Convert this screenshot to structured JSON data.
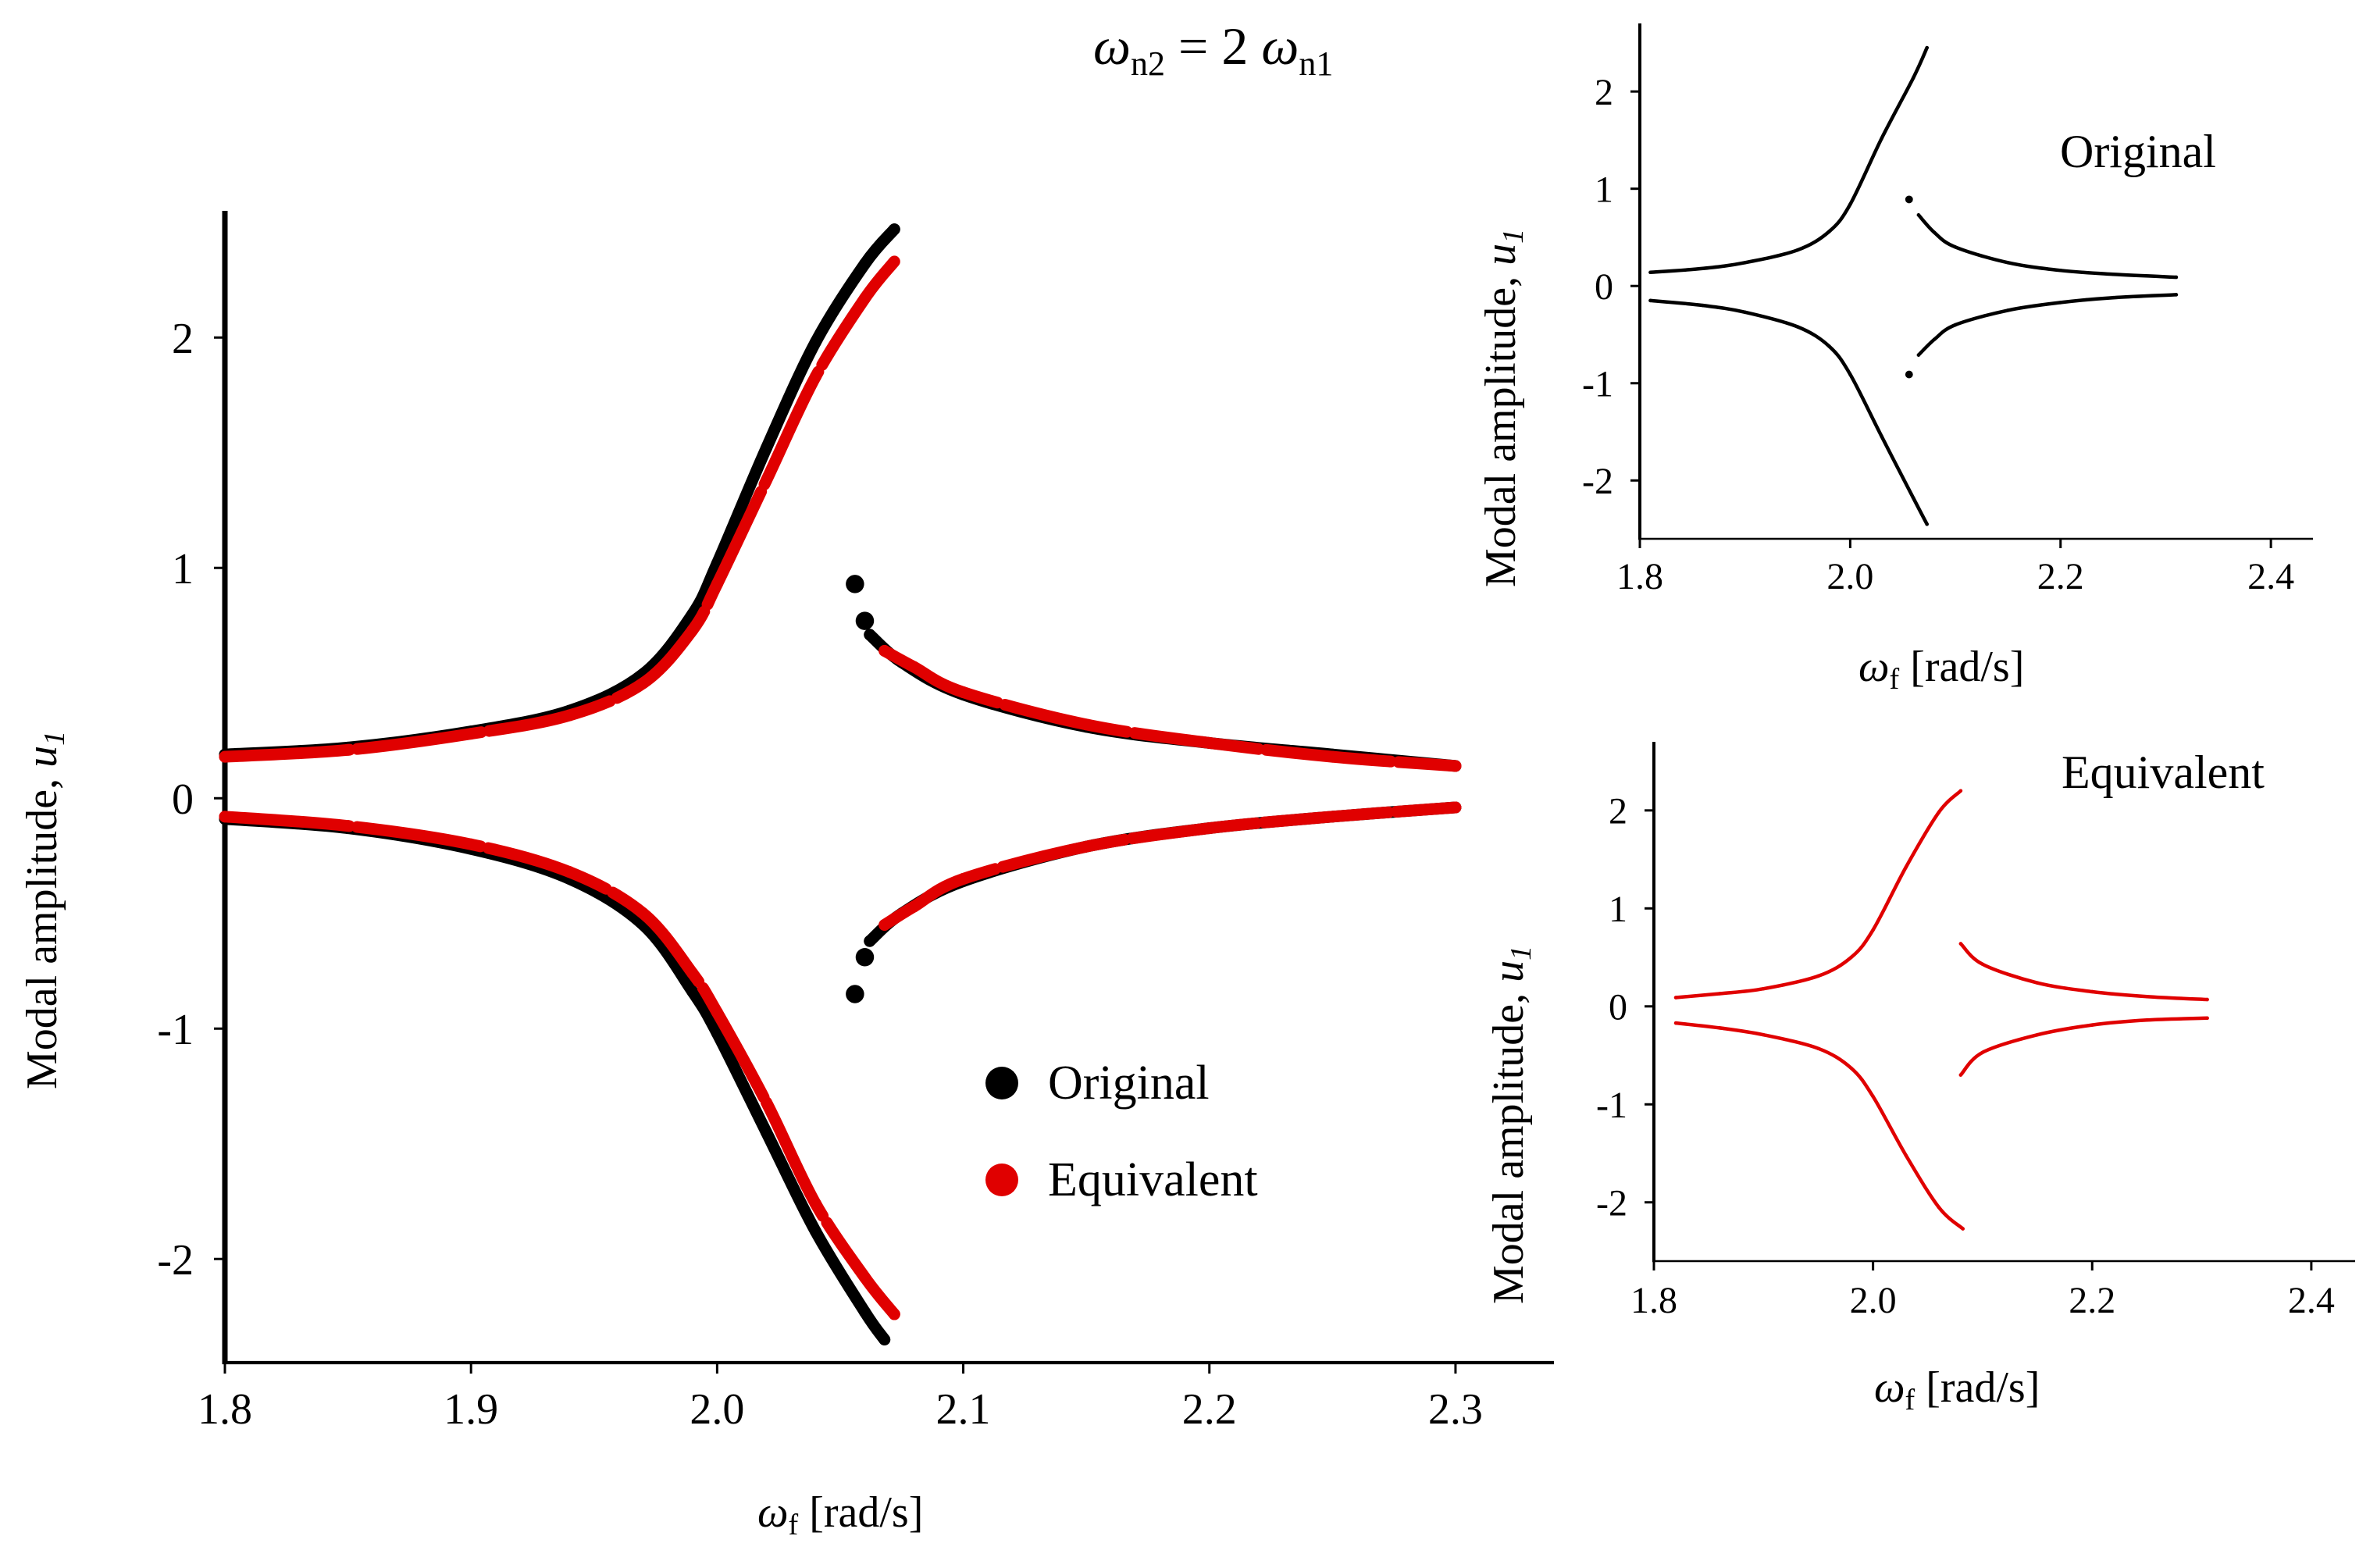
{
  "heading": {
    "omega": "ω",
    "sub_left": "n2",
    "middle": " = 2 ",
    "sub_right": "n1"
  },
  "colors": {
    "original": "#000000",
    "equivalent": "#e00000",
    "axis": "#000000"
  },
  "chart_data": [
    {
      "id": "main",
      "type": "scatter",
      "title": "",
      "xlabel": {
        "symbol": "ω",
        "sub": "f",
        "text": " [rad/s]"
      },
      "ylabel": {
        "text": "Modal amplitude, ",
        "symbol": "u",
        "sub": "1"
      },
      "xlim": [
        1.8,
        2.34
      ],
      "ylim": [
        -2.45,
        2.55
      ],
      "xticks": [
        "1.8",
        "1.9",
        "2.0",
        "2.1",
        "2.2",
        "2.3"
      ],
      "yticks": [
        "-2",
        "-1",
        "0",
        "1",
        "2"
      ],
      "legend": {
        "position": "lower-center",
        "entries": [
          "Original",
          "Equivalent"
        ]
      },
      "series": [
        {
          "name": "Original",
          "color_key": "original",
          "upper_left": [
            [
              1.8,
              0.19
            ],
            [
              1.85,
              0.22
            ],
            [
              1.9,
              0.29
            ],
            [
              1.94,
              0.38
            ],
            [
              1.97,
              0.54
            ],
            [
              1.99,
              0.8
            ],
            [
              2.0,
              1.02
            ],
            [
              2.02,
              1.52
            ],
            [
              2.04,
              1.98
            ],
            [
              2.06,
              2.32
            ],
            [
              2.072,
              2.47
            ]
          ],
          "lower_left": [
            [
              1.8,
              -0.09
            ],
            [
              1.85,
              -0.13
            ],
            [
              1.9,
              -0.22
            ],
            [
              1.94,
              -0.35
            ],
            [
              1.97,
              -0.55
            ],
            [
              1.99,
              -0.84
            ],
            [
              2.0,
              -1.02
            ],
            [
              2.02,
              -1.45
            ],
            [
              2.04,
              -1.88
            ],
            [
              2.06,
              -2.23
            ],
            [
              2.068,
              -2.35
            ]
          ],
          "upper_right": [
            [
              2.062,
              0.71
            ],
            [
              2.075,
              0.59
            ],
            [
              2.1,
              0.45
            ],
            [
              2.15,
              0.31
            ],
            [
              2.2,
              0.24
            ],
            [
              2.25,
              0.19
            ],
            [
              2.3,
              0.14
            ]
          ],
          "lower_right": [
            [
              2.062,
              -0.62
            ],
            [
              2.075,
              -0.5
            ],
            [
              2.1,
              -0.36
            ],
            [
              2.15,
              -0.21
            ],
            [
              2.2,
              -0.13
            ],
            [
              2.25,
              -0.08
            ],
            [
              2.3,
              -0.04
            ]
          ],
          "isolated": [
            [
              2.056,
              0.93
            ],
            [
              2.06,
              0.77
            ],
            [
              2.056,
              -0.85
            ],
            [
              2.06,
              -0.69
            ]
          ]
        },
        {
          "name": "Equivalent",
          "color_key": "equivalent",
          "upper_left": [
            [
              1.8,
              0.18
            ],
            [
              1.85,
              0.21
            ],
            [
              1.9,
              0.28
            ],
            [
              1.94,
              0.36
            ],
            [
              1.97,
              0.5
            ],
            [
              1.99,
              0.73
            ],
            [
              2.0,
              0.93
            ],
            [
              2.02,
              1.38
            ],
            [
              2.04,
              1.83
            ],
            [
              2.06,
              2.17
            ],
            [
              2.072,
              2.33
            ]
          ],
          "lower_left": [
            [
              1.8,
              -0.08
            ],
            [
              1.85,
              -0.12
            ],
            [
              1.9,
              -0.2
            ],
            [
              1.94,
              -0.32
            ],
            [
              1.97,
              -0.5
            ],
            [
              1.99,
              -0.76
            ],
            [
              2.0,
              -0.93
            ],
            [
              2.02,
              -1.32
            ],
            [
              2.04,
              -1.76
            ],
            [
              2.06,
              -2.08
            ],
            [
              2.072,
              -2.24
            ]
          ],
          "upper_right": [
            [
              2.068,
              0.64
            ],
            [
              2.08,
              0.57
            ],
            [
              2.1,
              0.46
            ],
            [
              2.15,
              0.32
            ],
            [
              2.2,
              0.24
            ],
            [
              2.25,
              0.18
            ],
            [
              2.3,
              0.14
            ]
          ],
          "lower_right": [
            [
              2.068,
              -0.55
            ],
            [
              2.08,
              -0.47
            ],
            [
              2.1,
              -0.35
            ],
            [
              2.15,
              -0.21
            ],
            [
              2.2,
              -0.13
            ],
            [
              2.25,
              -0.08
            ],
            [
              2.3,
              -0.04
            ]
          ],
          "isolated": []
        }
      ]
    },
    {
      "id": "inset-original",
      "type": "line",
      "title": "Original",
      "xlabel": {
        "symbol": "ω",
        "sub": "f",
        "text": " [rad/s]"
      },
      "ylabel": {
        "text": "Modal amplitude, ",
        "symbol": "u",
        "sub": "1"
      },
      "xlim": [
        1.8,
        2.44
      ],
      "ylim": [
        -2.6,
        2.7
      ],
      "xticks": [
        "1.8",
        "2.0",
        "2.2",
        "2.4"
      ],
      "yticks": [
        "-2",
        "-1",
        "0",
        "1",
        "2"
      ],
      "series": [
        {
          "name": "Original",
          "color_key": "original",
          "upper_left": [
            [
              1.81,
              0.14
            ],
            [
              1.86,
              0.18
            ],
            [
              1.9,
              0.24
            ],
            [
              1.95,
              0.37
            ],
            [
              1.98,
              0.56
            ],
            [
              2.0,
              0.84
            ],
            [
              2.03,
              1.52
            ],
            [
              2.06,
              2.14
            ],
            [
              2.073,
              2.45
            ]
          ],
          "lower_left": [
            [
              1.81,
              -0.15
            ],
            [
              1.86,
              -0.2
            ],
            [
              1.9,
              -0.27
            ],
            [
              1.95,
              -0.42
            ],
            [
              1.98,
              -0.62
            ],
            [
              2.0,
              -0.91
            ],
            [
              2.03,
              -1.55
            ],
            [
              2.06,
              -2.18
            ],
            [
              2.073,
              -2.45
            ]
          ],
          "upper_right": [
            [
              2.065,
              0.73
            ],
            [
              2.08,
              0.55
            ],
            [
              2.1,
              0.4
            ],
            [
              2.15,
              0.24
            ],
            [
              2.2,
              0.16
            ],
            [
              2.25,
              0.12
            ],
            [
              2.31,
              0.09
            ]
          ],
          "lower_right": [
            [
              2.065,
              -0.71
            ],
            [
              2.08,
              -0.55
            ],
            [
              2.1,
              -0.4
            ],
            [
              2.15,
              -0.25
            ],
            [
              2.2,
              -0.17
            ],
            [
              2.25,
              -0.12
            ],
            [
              2.31,
              -0.09
            ]
          ],
          "isolated": [
            [
              2.056,
              0.89
            ],
            [
              2.056,
              -0.91
            ]
          ]
        }
      ]
    },
    {
      "id": "inset-equivalent",
      "type": "line",
      "title": "Equivalent",
      "xlabel": {
        "symbol": "ω",
        "sub": "f",
        "text": " [rad/s]"
      },
      "ylabel": {
        "text": "Modal amplitude, ",
        "symbol": "u",
        "sub": "1"
      },
      "xlim": [
        1.8,
        2.44
      ],
      "ylim": [
        -2.6,
        2.7
      ],
      "xticks": [
        "1.8",
        "2.0",
        "2.2",
        "2.4"
      ],
      "yticks": [
        "-2",
        "-1",
        "0",
        "1",
        "2"
      ],
      "series": [
        {
          "name": "Equivalent",
          "color_key": "equivalent",
          "upper_left": [
            [
              1.82,
              0.09
            ],
            [
              1.86,
              0.13
            ],
            [
              1.9,
              0.18
            ],
            [
              1.95,
              0.31
            ],
            [
              1.98,
              0.5
            ],
            [
              2.0,
              0.78
            ],
            [
              2.03,
              1.42
            ],
            [
              2.06,
              1.98
            ],
            [
              2.08,
              2.2
            ]
          ],
          "lower_left": [
            [
              1.82,
              -0.17
            ],
            [
              1.86,
              -0.22
            ],
            [
              1.9,
              -0.29
            ],
            [
              1.95,
              -0.43
            ],
            [
              1.98,
              -0.63
            ],
            [
              2.0,
              -0.92
            ],
            [
              2.03,
              -1.52
            ],
            [
              2.06,
              -2.05
            ],
            [
              2.082,
              -2.27
            ]
          ],
          "upper_right": [
            [
              2.08,
              0.64
            ],
            [
              2.1,
              0.43
            ],
            [
              2.15,
              0.24
            ],
            [
              2.2,
              0.15
            ],
            [
              2.25,
              0.1
            ],
            [
              2.305,
              0.07
            ]
          ],
          "lower_right": [
            [
              2.08,
              -0.7
            ],
            [
              2.1,
              -0.47
            ],
            [
              2.15,
              -0.29
            ],
            [
              2.2,
              -0.19
            ],
            [
              2.25,
              -0.14
            ],
            [
              2.305,
              -0.12
            ]
          ],
          "isolated": []
        }
      ]
    }
  ]
}
